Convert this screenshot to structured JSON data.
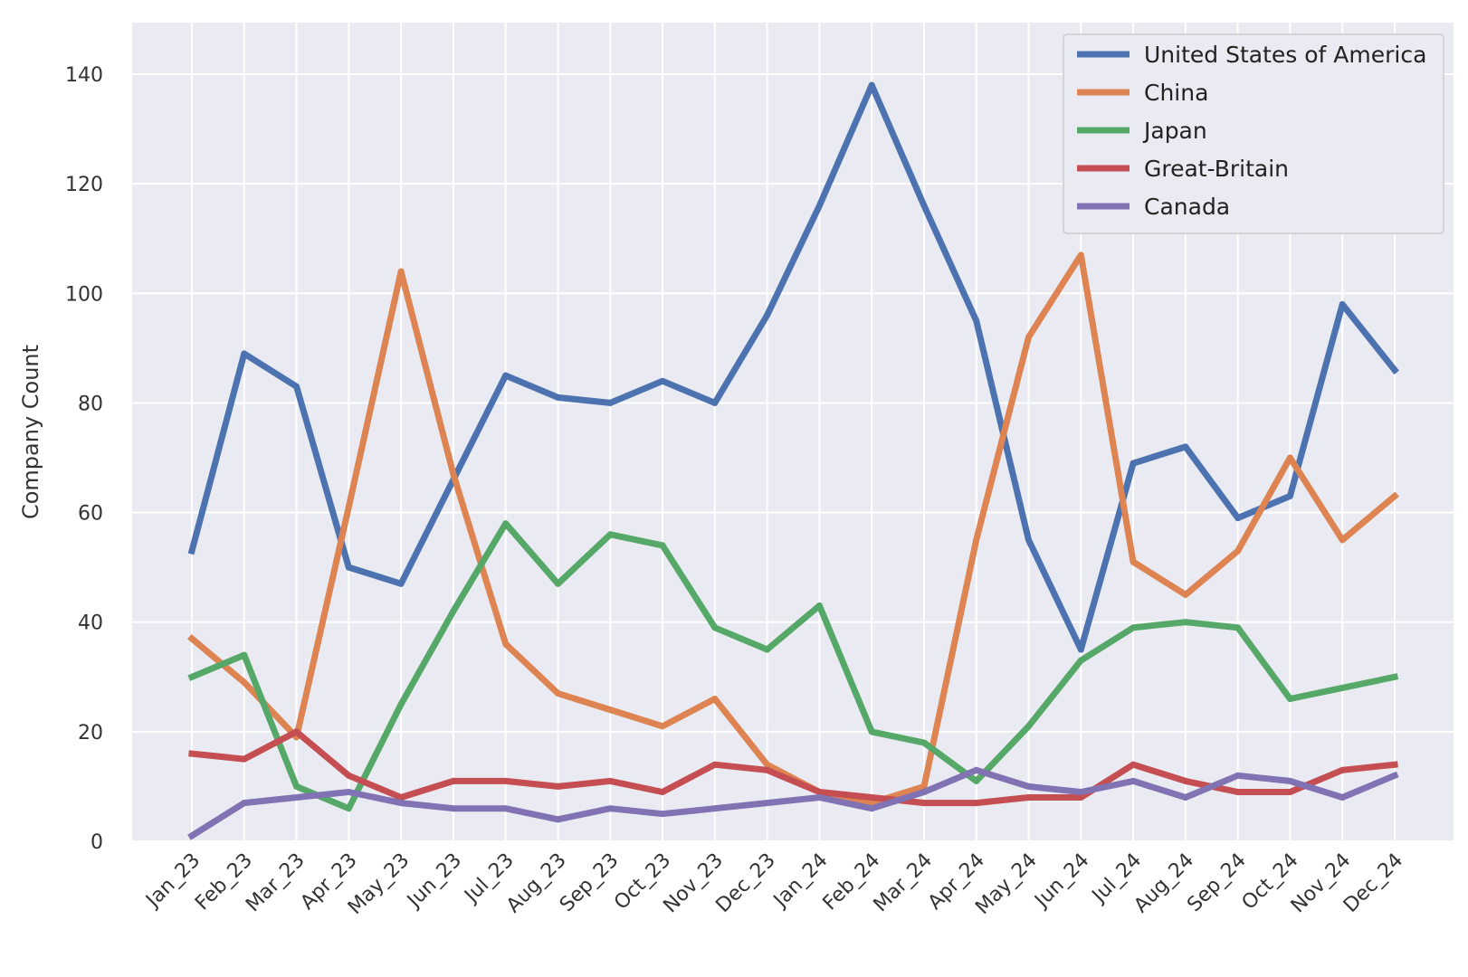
{
  "chart_data": {
    "type": "line",
    "title": "",
    "xlabel": "",
    "ylabel": "Company Count",
    "ylim": [
      0,
      150
    ],
    "yticks": [
      0,
      20,
      40,
      60,
      80,
      100,
      120,
      140
    ],
    "grid": true,
    "legend_position": "top-right",
    "categories": [
      "Jan_23",
      "Feb_23",
      "Mar_23",
      "Apr_23",
      "May_23",
      "Jun_23",
      "Jul_23",
      "Aug_23",
      "Sep_23",
      "Oct_23",
      "Nov_23",
      "Dec_23",
      "Jan_24",
      "Feb_24",
      "Mar_24",
      "Apr_24",
      "May_24",
      "Jun_24",
      "Jul_24",
      "Aug_24",
      "Sep_24",
      "Oct_24",
      "Nov_24",
      "Dec_24"
    ],
    "series": [
      {
        "name": "United States of America",
        "color": "#4c72b0",
        "values": [
          53,
          89,
          83,
          50,
          47,
          66,
          85,
          81,
          80,
          84,
          80,
          96,
          116,
          138,
          116,
          95,
          55,
          35,
          69,
          72,
          59,
          63,
          98,
          86
        ]
      },
      {
        "name": "China",
        "color": "#dd8452",
        "values": [
          37,
          29,
          19,
          61,
          104,
          67,
          36,
          27,
          24,
          21,
          26,
          14,
          9,
          7,
          10,
          55,
          92,
          107,
          51,
          45,
          53,
          70,
          55,
          63
        ]
      },
      {
        "name": "Japan",
        "color": "#55a868",
        "values": [
          30,
          34,
          10,
          6,
          25,
          42,
          58,
          47,
          56,
          54,
          39,
          35,
          43,
          20,
          18,
          11,
          21,
          33,
          39,
          40,
          39,
          26,
          28,
          30
        ]
      },
      {
        "name": "Great-Britain",
        "color": "#c44e52",
        "values": [
          16,
          15,
          20,
          12,
          8,
          11,
          11,
          10,
          11,
          9,
          14,
          13,
          9,
          8,
          7,
          7,
          8,
          8,
          14,
          11,
          9,
          9,
          13,
          14
        ]
      },
      {
        "name": "Canada",
        "color": "#8172b3",
        "values": [
          1,
          7,
          8,
          9,
          7,
          6,
          6,
          4,
          6,
          5,
          6,
          7,
          8,
          6,
          9,
          13,
          10,
          9,
          11,
          8,
          12,
          11,
          8,
          12
        ]
      }
    ]
  }
}
